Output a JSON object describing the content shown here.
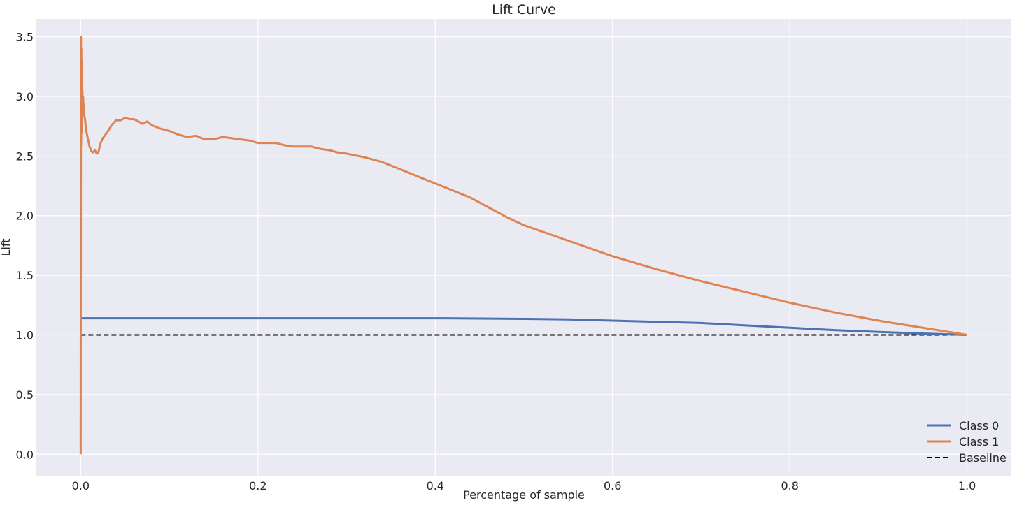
{
  "chart_data": {
    "type": "line",
    "title": "Lift Curve",
    "xlabel": "Percentage of sample",
    "ylabel": "Lift",
    "xlim": [
      -0.05,
      1.05
    ],
    "ylim": [
      -0.18,
      3.65
    ],
    "xticks": [
      0.0,
      0.2,
      0.4,
      0.6,
      0.8,
      1.0
    ],
    "xtick_labels": [
      "0.0",
      "0.2",
      "0.4",
      "0.6",
      "0.8",
      "1.0"
    ],
    "yticks": [
      0.0,
      0.5,
      1.0,
      1.5,
      2.0,
      2.5,
      3.0,
      3.5
    ],
    "ytick_labels": [
      "0.0",
      "0.5",
      "1.0",
      "1.5",
      "2.0",
      "2.5",
      "3.0",
      "3.5"
    ],
    "grid": true,
    "legend_position": "lower right",
    "colors": {
      "background": "#eaeaf2",
      "grid": "#ffffff",
      "class0": "#4c72b0",
      "class1": "#dd8452",
      "baseline": "#000000"
    },
    "series": [
      {
        "name": "Class 0",
        "x": [
          0.0,
          0.001,
          0.01,
          0.05,
          0.1,
          0.2,
          0.3,
          0.4,
          0.45,
          0.5,
          0.55,
          0.6,
          0.65,
          0.7,
          0.75,
          0.8,
          0.85,
          0.9,
          0.95,
          1.0
        ],
        "y": [
          1.14,
          1.14,
          1.14,
          1.14,
          1.14,
          1.14,
          1.14,
          1.14,
          1.138,
          1.135,
          1.13,
          1.12,
          1.11,
          1.1,
          1.08,
          1.06,
          1.04,
          1.025,
          1.012,
          1.0
        ]
      },
      {
        "name": "Class 1",
        "x": [
          0.0,
          0.0003,
          0.0005,
          0.0007,
          0.001,
          0.0013,
          0.0016,
          0.002,
          0.0023,
          0.0027,
          0.003,
          0.004,
          0.005,
          0.006,
          0.008,
          0.01,
          0.012,
          0.014,
          0.016,
          0.018,
          0.02,
          0.022,
          0.025,
          0.028,
          0.03,
          0.035,
          0.04,
          0.045,
          0.05,
          0.055,
          0.06,
          0.065,
          0.07,
          0.075,
          0.08,
          0.09,
          0.1,
          0.11,
          0.12,
          0.13,
          0.14,
          0.15,
          0.16,
          0.17,
          0.18,
          0.19,
          0.2,
          0.21,
          0.22,
          0.23,
          0.24,
          0.25,
          0.26,
          0.27,
          0.28,
          0.29,
          0.3,
          0.32,
          0.34,
          0.36,
          0.38,
          0.4,
          0.42,
          0.44,
          0.46,
          0.48,
          0.5,
          0.55,
          0.6,
          0.65,
          0.7,
          0.75,
          0.8,
          0.85,
          0.9,
          0.95,
          1.0
        ],
        "y": [
          0.0,
          3.5,
          2.6,
          3.4,
          2.8,
          3.3,
          2.7,
          3.05,
          2.9,
          3.0,
          2.95,
          2.85,
          2.8,
          2.72,
          2.65,
          2.58,
          2.54,
          2.53,
          2.55,
          2.52,
          2.53,
          2.6,
          2.65,
          2.68,
          2.7,
          2.76,
          2.8,
          2.8,
          2.82,
          2.81,
          2.81,
          2.79,
          2.77,
          2.79,
          2.76,
          2.73,
          2.71,
          2.68,
          2.66,
          2.67,
          2.64,
          2.64,
          2.66,
          2.65,
          2.64,
          2.63,
          2.61,
          2.61,
          2.61,
          2.59,
          2.58,
          2.58,
          2.58,
          2.56,
          2.55,
          2.53,
          2.52,
          2.49,
          2.45,
          2.39,
          2.33,
          2.27,
          2.21,
          2.15,
          2.07,
          1.99,
          1.92,
          1.79,
          1.66,
          1.55,
          1.45,
          1.36,
          1.27,
          1.19,
          1.12,
          1.06,
          1.0
        ]
      },
      {
        "name": "Baseline",
        "style": "dashed",
        "x": [
          0.0,
          1.0
        ],
        "y": [
          1.0,
          1.0
        ]
      }
    ]
  }
}
